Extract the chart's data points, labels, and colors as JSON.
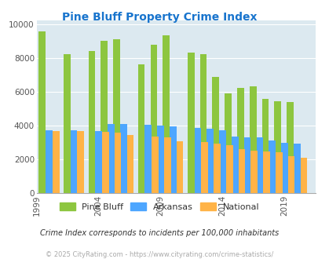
{
  "title": "Pine Bluff Property Crime Index",
  "title_color": "#1874cd",
  "years": [
    2000,
    2002,
    2004,
    2005,
    2006,
    2008,
    2009,
    2010,
    2012,
    2013,
    2014,
    2015,
    2016,
    2017,
    2018,
    2019,
    2020
  ],
  "pine_bluff": [
    9550,
    8200,
    8400,
    9000,
    9100,
    7600,
    8800,
    9350,
    8300,
    8200,
    6850,
    5900,
    6200,
    6300,
    5550,
    5450,
    5400
  ],
  "arkansas": [
    3700,
    3700,
    3650,
    4100,
    4100,
    4050,
    4000,
    3950,
    3850,
    3800,
    3700,
    3350,
    3300,
    3300,
    3100,
    2950,
    2900
  ],
  "national": [
    3650,
    3650,
    3600,
    3550,
    3450,
    3350,
    3300,
    3050,
    3000,
    2900,
    2850,
    2600,
    2500,
    2450,
    2400,
    2200,
    2100
  ],
  "pine_bluff_color": "#8dc63f",
  "arkansas_color": "#4da6ff",
  "national_color": "#ffb347",
  "bg_color": "#dce9f0",
  "ylabel_vals": [
    0,
    2000,
    4000,
    6000,
    8000,
    10000
  ],
  "xtick_labels": [
    "1999",
    "2004",
    "2009",
    "2014",
    "2019"
  ],
  "ylim": [
    0,
    10200
  ],
  "footnote": "Crime Index corresponds to incidents per 100,000 inhabitants",
  "copyright": "© 2025 CityRating.com - https://www.cityrating.com/crime-statistics/",
  "legend_labels": [
    "Pine Bluff",
    "Arkansas",
    "National"
  ]
}
